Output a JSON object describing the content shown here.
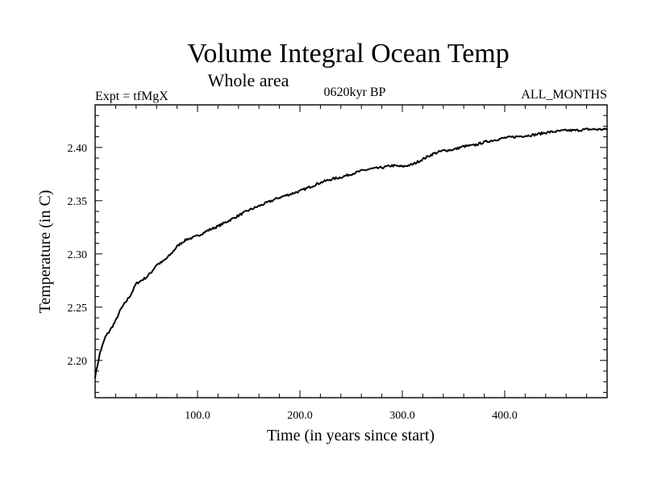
{
  "chart_data": {
    "type": "line",
    "title": "Volume Integral Ocean Temp",
    "subtitle": "Whole area",
    "annotations": {
      "left": "Expt = tfMgX",
      "center": "0620kyr BP",
      "right": "ALL_MONTHS"
    },
    "xlabel": "Time (in years since start)",
    "ylabel": "Temperature (in C)",
    "xlim": [
      0,
      500
    ],
    "ylim": [
      2.165,
      2.44
    ],
    "x_tick_values": [
      100,
      200,
      300,
      400
    ],
    "x_tick_labels": [
      "100.0",
      "200.0",
      "300.0",
      "400.0"
    ],
    "y_tick_values": [
      2.2,
      2.25,
      2.3,
      2.35,
      2.4
    ],
    "y_tick_labels": [
      "2.20",
      "2.25",
      "2.30",
      "2.35",
      "2.40"
    ],
    "grid": false,
    "series": [
      {
        "x": [
          0,
          5,
          10,
          15,
          20,
          25,
          30,
          35,
          40,
          45,
          50,
          55,
          60,
          65,
          70,
          75,
          80,
          85,
          90,
          95,
          100,
          110,
          120,
          130,
          140,
          150,
          160,
          170,
          180,
          190,
          200,
          210,
          220,
          230,
          240,
          250,
          260,
          270,
          280,
          290,
          300,
          310,
          320,
          330,
          340,
          350,
          360,
          370,
          380,
          390,
          400,
          410,
          420,
          430,
          440,
          450,
          460,
          470,
          480,
          490,
          500
        ],
        "y": [
          2.185,
          2.208,
          2.222,
          2.229,
          2.237,
          2.248,
          2.255,
          2.262,
          2.272,
          2.275,
          2.278,
          2.283,
          2.29,
          2.292,
          2.296,
          2.301,
          2.307,
          2.311,
          2.314,
          2.315,
          2.317,
          2.322,
          2.326,
          2.331,
          2.336,
          2.341,
          2.345,
          2.349,
          2.353,
          2.356,
          2.359,
          2.363,
          2.367,
          2.37,
          2.372,
          2.375,
          2.378,
          2.38,
          2.381,
          2.383,
          2.382,
          2.384,
          2.389,
          2.394,
          2.397,
          2.398,
          2.401,
          2.402,
          2.405,
          2.407,
          2.409,
          2.41,
          2.411,
          2.412,
          2.414,
          2.415,
          2.416,
          2.416,
          2.417,
          2.417,
          2.417
        ],
        "color": "#000000"
      }
    ]
  }
}
